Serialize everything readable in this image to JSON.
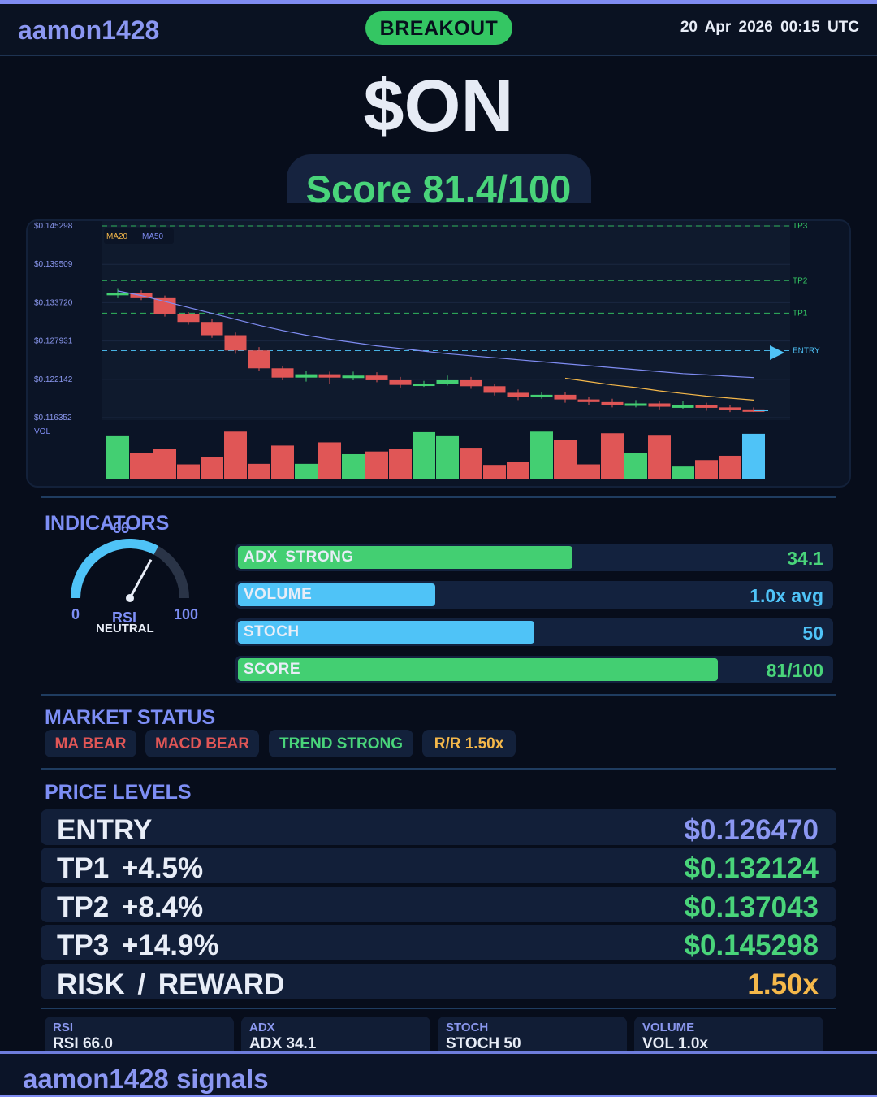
{
  "header": {
    "brand": "aamon1428",
    "signal_badge": "BREAKOUT",
    "datetime": "20 Apr 2026  00:15 UTC"
  },
  "ticker": "$ON",
  "score_label": "Score 81.4/100",
  "chart_data": {
    "type": "candlestick",
    "y_ticks": [
      "$0.145298",
      "$0.139509",
      "$0.133720",
      "$0.127931",
      "$0.122142",
      "$0.116352"
    ],
    "ylim": [
      0.116352,
      0.145298
    ],
    "legend": [
      "MA20",
      "MA50"
    ],
    "volume_label": "VOL",
    "level_lines": [
      {
        "name": "TP3",
        "value": 0.145298,
        "color": "#34c663"
      },
      {
        "name": "TP2",
        "value": 0.137043,
        "color": "#34c663"
      },
      {
        "name": "TP1",
        "value": 0.132124,
        "color": "#34c663"
      },
      {
        "name": "ENTRY",
        "value": 0.12647,
        "color": "#4fc3f7"
      }
    ],
    "candles": [
      {
        "o": 0.1351,
        "c": 0.1352,
        "h": 0.1358,
        "l": 0.1344,
        "v": 0.82
      },
      {
        "o": 0.1352,
        "c": 0.1344,
        "h": 0.1356,
        "l": 0.1341,
        "v": 0.5
      },
      {
        "o": 0.1344,
        "c": 0.132,
        "h": 0.1348,
        "l": 0.1316,
        "v": 0.57
      },
      {
        "o": 0.132,
        "c": 0.1308,
        "h": 0.1323,
        "l": 0.1304,
        "v": 0.28
      },
      {
        "o": 0.1308,
        "c": 0.1288,
        "h": 0.1312,
        "l": 0.1284,
        "v": 0.42
      },
      {
        "o": 0.1288,
        "c": 0.1265,
        "h": 0.1292,
        "l": 0.126,
        "v": 0.89
      },
      {
        "o": 0.1265,
        "c": 0.1238,
        "h": 0.127,
        "l": 0.1234,
        "v": 0.29
      },
      {
        "o": 0.1238,
        "c": 0.1224,
        "h": 0.1242,
        "l": 0.122,
        "v": 0.63
      },
      {
        "o": 0.1224,
        "c": 0.1229,
        "h": 0.1234,
        "l": 0.1218,
        "v": 0.29
      },
      {
        "o": 0.1229,
        "c": 0.1224,
        "h": 0.1233,
        "l": 0.1215,
        "v": 0.69
      },
      {
        "o": 0.1224,
        "c": 0.1227,
        "h": 0.1233,
        "l": 0.122,
        "v": 0.47
      },
      {
        "o": 0.1227,
        "c": 0.122,
        "h": 0.1232,
        "l": 0.1217,
        "v": 0.52
      },
      {
        "o": 0.122,
        "c": 0.1213,
        "h": 0.1225,
        "l": 0.1209,
        "v": 0.57
      },
      {
        "o": 0.1213,
        "c": 0.1215,
        "h": 0.1219,
        "l": 0.121,
        "v": 0.88
      },
      {
        "o": 0.1215,
        "c": 0.122,
        "h": 0.1227,
        "l": 0.1212,
        "v": 0.82
      },
      {
        "o": 0.122,
        "c": 0.1211,
        "h": 0.1225,
        "l": 0.1207,
        "v": 0.59
      },
      {
        "o": 0.1211,
        "c": 0.1201,
        "h": 0.1215,
        "l": 0.1197,
        "v": 0.27
      },
      {
        "o": 0.1201,
        "c": 0.1195,
        "h": 0.1206,
        "l": 0.119,
        "v": 0.33
      },
      {
        "o": 0.1195,
        "c": 0.1198,
        "h": 0.1202,
        "l": 0.1192,
        "v": 0.89
      },
      {
        "o": 0.1198,
        "c": 0.1191,
        "h": 0.1202,
        "l": 0.1186,
        "v": 0.73
      },
      {
        "o": 0.1191,
        "c": 0.1187,
        "h": 0.1195,
        "l": 0.1182,
        "v": 0.28
      },
      {
        "o": 0.1187,
        "c": 0.1183,
        "h": 0.1192,
        "l": 0.1179,
        "v": 0.86
      },
      {
        "o": 0.1183,
        "c": 0.1185,
        "h": 0.119,
        "l": 0.1179,
        "v": 0.49
      },
      {
        "o": 0.1185,
        "c": 0.118,
        "h": 0.1189,
        "l": 0.1176,
        "v": 0.83
      },
      {
        "o": 0.118,
        "c": 0.1182,
        "h": 0.1188,
        "l": 0.1177,
        "v": 0.24
      },
      {
        "o": 0.1182,
        "c": 0.1179,
        "h": 0.1186,
        "l": 0.1174,
        "v": 0.36
      },
      {
        "o": 0.1179,
        "c": 0.1176,
        "h": 0.1183,
        "l": 0.1172,
        "v": 0.44
      },
      {
        "o": 0.1176,
        "c": 0.11745,
        "h": 0.1179,
        "l": 0.1172,
        "v": 0.85
      }
    ],
    "ma20": [
      null,
      null,
      null,
      null,
      null,
      null,
      null,
      null,
      null,
      null,
      null,
      null,
      null,
      null,
      null,
      null,
      null,
      null,
      null,
      0.1223,
      0.1218,
      0.1213,
      0.1209,
      0.1204,
      0.12,
      0.1196,
      0.1193,
      0.119
    ],
    "ma50": [
      0.1355,
      0.1348,
      0.1339,
      0.133,
      0.1321,
      0.1312,
      0.1303,
      0.1295,
      0.1288,
      0.1282,
      0.1277,
      0.1272,
      0.1268,
      0.1264,
      0.126,
      0.1257,
      0.1254,
      0.1251,
      0.1248,
      0.1245,
      0.1242,
      0.1239,
      0.1236,
      0.1233,
      0.123,
      0.1228,
      0.1226,
      0.1224
    ],
    "last_price": 0.11745
  },
  "indicators": {
    "title": "INDICATORS",
    "rsi": {
      "value": 66,
      "value_label": "66",
      "min_label": "0",
      "max_label": "100",
      "name": "RSI",
      "state": "NEUTRAL"
    },
    "bars": [
      {
        "name": "ADX  STRONG",
        "value": "34.1",
        "fill": 0.565,
        "color": "#43cf72",
        "value_color": "#49d47a"
      },
      {
        "name": "VOLUME",
        "value": "1.0x avg",
        "fill": 0.333,
        "color": "#4fc3f7",
        "value_color": "#4fc3f7"
      },
      {
        "name": "STOCH",
        "value": "50",
        "fill": 0.5,
        "color": "#4fc3f7",
        "value_color": "#4fc3f7"
      },
      {
        "name": "SCORE",
        "value": "81/100",
        "fill": 0.81,
        "color": "#43cf72",
        "value_color": "#49d47a"
      }
    ]
  },
  "market_status": {
    "title": "MARKET STATUS",
    "chips": [
      {
        "label": "MA BEAR",
        "color": "#e05656"
      },
      {
        "label": "MACD BEAR",
        "color": "#e05656"
      },
      {
        "label": "TREND STRONG",
        "color": "#49d47a"
      },
      {
        "label": "R/R  1.50x",
        "color": "#f5b84a"
      }
    ]
  },
  "price_levels": {
    "title": "PRICE LEVELS",
    "rows": [
      {
        "name": "ENTRY",
        "value": "$0.126470",
        "color": "#8b97f2"
      },
      {
        "name": "TP1  +4.5%",
        "value": "$0.132124",
        "color": "#49d47a"
      },
      {
        "name": "TP2  +8.4%",
        "value": "$0.137043",
        "color": "#49d47a"
      },
      {
        "name": "TP3  +14.9%",
        "value": "$0.145298",
        "color": "#49d47a"
      },
      {
        "name": "RISK / REWARD",
        "value": "1.50x",
        "color": "#f5b84a"
      }
    ]
  },
  "stats": [
    {
      "label": "RSI",
      "value": "RSI 66.0"
    },
    {
      "label": "ADX",
      "value": "ADX 34.1"
    },
    {
      "label": "STOCH",
      "value": "STOCH 50"
    },
    {
      "label": "VOLUME",
      "value": "VOL 1.0x"
    }
  ],
  "footer": {
    "text": "aamon1428 signals"
  }
}
